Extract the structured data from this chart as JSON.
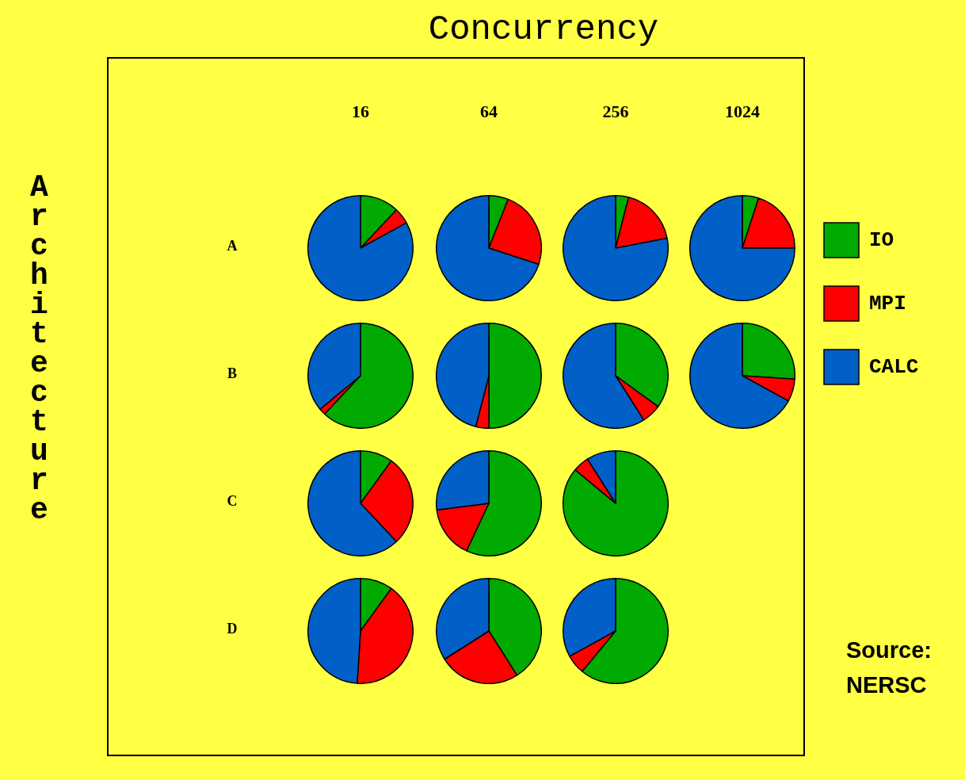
{
  "chart_data": [
    {
      "type": "other",
      "title": "Concurrency",
      "ylabel": "Architecture",
      "annotations": [
        "16",
        "64",
        "256",
        "1024",
        "A",
        "B",
        "C",
        "D",
        "Source:\nNERSC"
      ]
    },
    {
      "type": "pie",
      "values": [
        12,
        5,
        83
      ],
      "colors": [
        "#00aa00",
        "#ff0000",
        "#0060c8"
      ]
    },
    {
      "type": "pie",
      "values": [
        6,
        24,
        70
      ],
      "colors": [
        "#00aa00",
        "#ff0000",
        "#0060c8"
      ]
    },
    {
      "type": "pie",
      "values": [
        4,
        18,
        78
      ],
      "colors": [
        "#00aa00",
        "#ff0000",
        "#0060c8"
      ]
    },
    {
      "type": "pie",
      "categories": [
        "IO",
        "MPI",
        "CALC"
      ],
      "values": [
        5,
        20,
        75
      ],
      "colors": [
        "#00aa00",
        "#ff0000",
        "#0060c8"
      ],
      "legend": "right"
    },
    {
      "type": "pie",
      "values": [
        62,
        2,
        36
      ],
      "colors": [
        "#00aa00",
        "#ff0000",
        "#0060c8"
      ]
    },
    {
      "type": "pie",
      "values": [
        50,
        4,
        46
      ],
      "colors": [
        "#00aa00",
        "#ff0000",
        "#0060c8"
      ]
    },
    {
      "type": "pie",
      "values": [
        35,
        6,
        59
      ],
      "colors": [
        "#00aa00",
        "#ff0000",
        "#0060c8"
      ]
    },
    {
      "type": "pie",
      "values": [
        26,
        7,
        67
      ],
      "colors": [
        "#00aa00",
        "#ff0000",
        "#0060c8"
      ]
    },
    {
      "type": "pie",
      "values": [
        10,
        28,
        62
      ],
      "colors": [
        "#00aa00",
        "#ff0000",
        "#0060c8"
      ]
    },
    {
      "type": "pie",
      "values": [
        57,
        16,
        27
      ],
      "colors": [
        "#00aa00",
        "#ff0000",
        "#0060c8"
      ]
    },
    {
      "type": "pie",
      "values": [
        86,
        5,
        9
      ],
      "colors": [
        "#00aa00",
        "#ff0000",
        "#0060c8"
      ]
    },
    {
      "type": "pie",
      "values": [
        10,
        41,
        49
      ],
      "colors": [
        "#00aa00",
        "#ff0000",
        "#0060c8"
      ]
    },
    {
      "type": "pie",
      "values": [
        41,
        25,
        34
      ],
      "colors": [
        "#00aa00",
        "#ff0000",
        "#0060c8"
      ]
    },
    {
      "type": "pie",
      "values": [
        61,
        6,
        33
      ],
      "colors": [
        "#00aa00",
        "#ff0000",
        "#0060c8"
      ]
    }
  ]
}
